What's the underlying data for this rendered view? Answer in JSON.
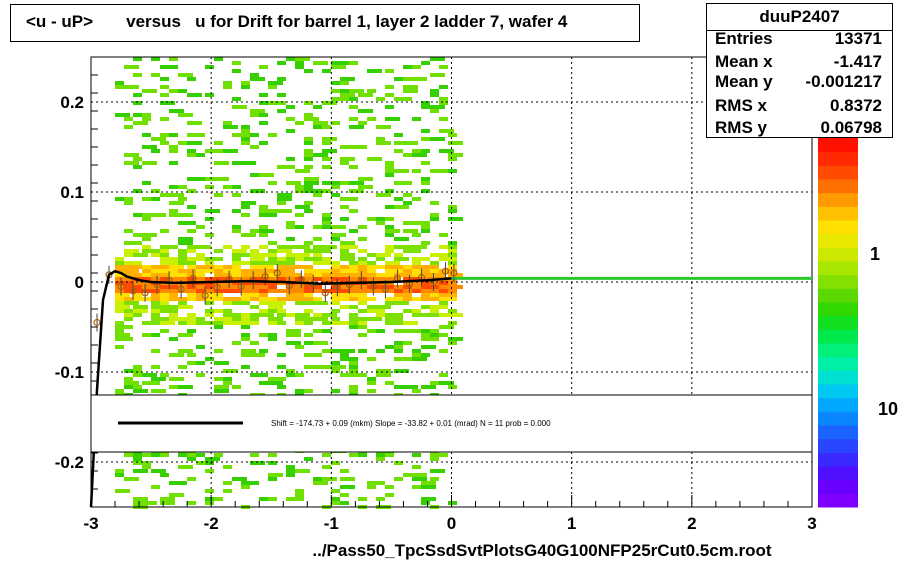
{
  "title": "<u - uP>       versus   u for Drift for barrel 1, layer 2 ladder 7, wafer 4",
  "stats": {
    "name": "duuP2407",
    "rows": [
      {
        "key": "Entries",
        "value": "13371"
      },
      {
        "key": "Mean x",
        "value": "-1.417"
      },
      {
        "key": "Mean y",
        "value": "-0.001217"
      },
      {
        "key": "RMS x",
        "value": "0.8372"
      },
      {
        "key": "RMS y",
        "value": "0.06798"
      }
    ]
  },
  "fit_legend": "Shift =  -174.73 + 0.09 (mkm) Slope =   -33.82 + 0.01 (mrad)  N = 11 prob = 0.000",
  "chart_data": {
    "type": "heatmap",
    "title": "<u - uP>       versus   u for Drift for barrel 1, layer 2 ladder 7, wafer 4",
    "xlabel": "../Pass50_TpcSsdSvtPlotsG40G100NFP25rCut0.5cm.root",
    "ylabel": "",
    "xlim": [
      -3,
      3
    ],
    "ylim": [
      -0.25,
      0.25
    ],
    "x_ticks": [
      -3,
      -2,
      -1,
      0,
      1,
      2,
      3
    ],
    "x_tick_labels": [
      "-3",
      "-2",
      "-1",
      "0",
      "1",
      "2",
      "3"
    ],
    "y_ticks": [
      -0.2,
      -0.1,
      0,
      0.1,
      0.2
    ],
    "y_tick_labels": [
      "-0.2",
      "-0.1",
      "0",
      "0.1",
      "0.2"
    ],
    "grid": true,
    "colorbar_labels": [
      "1",
      "10"
    ],
    "colorbar_label_text": [
      "1",
      "10"
    ],
    "profile_points": {
      "x": [
        -2.95,
        -2.85,
        -2.75,
        -2.65,
        -2.55,
        -2.45,
        -2.35,
        -2.25,
        -2.15,
        -2.05,
        -1.95,
        -1.85,
        -1.75,
        -1.65,
        -1.55,
        -1.45,
        -1.35,
        -1.25,
        -1.15,
        -1.05,
        -0.95,
        -0.85,
        -0.75,
        -0.65,
        -0.55,
        -0.45,
        -0.35,
        -0.25,
        -0.15,
        -0.05,
        0.02
      ],
      "y": [
        -0.045,
        0.008,
        -0.005,
        -0.01,
        -0.012,
        -0.003,
        0.002,
        -0.008,
        0.004,
        -0.015,
        -0.006,
        0.003,
        -0.005,
        0.002,
        0.006,
        0.01,
        -0.004,
        0.003,
        -0.002,
        -0.012,
        -0.006,
        -0.003,
        0.002,
        -0.005,
        -0.008,
        0.004,
        -0.002,
        0.005,
        0.0,
        0.012,
        0.01
      ]
    },
    "fit_curve": {
      "x": [
        -3.0,
        -2.95,
        -2.9,
        -2.85,
        -2.8,
        -2.75,
        -2.7,
        -2.6,
        -2.5,
        -2.3,
        -2.0,
        -1.7,
        -1.4,
        -1.1,
        -0.8,
        -0.5,
        -0.2,
        0.0
      ],
      "y": [
        -0.25,
        -0.12,
        -0.02,
        0.008,
        0.012,
        0.01,
        0.006,
        0.002,
        0.0,
        -0.001,
        0.0,
        0.001,
        0.0,
        -0.002,
        -0.001,
        0.0,
        0.002,
        0.004
      ]
    },
    "fit_line": {
      "x": [
        0,
        3
      ],
      "y": [
        0.004,
        0.004
      ]
    }
  }
}
